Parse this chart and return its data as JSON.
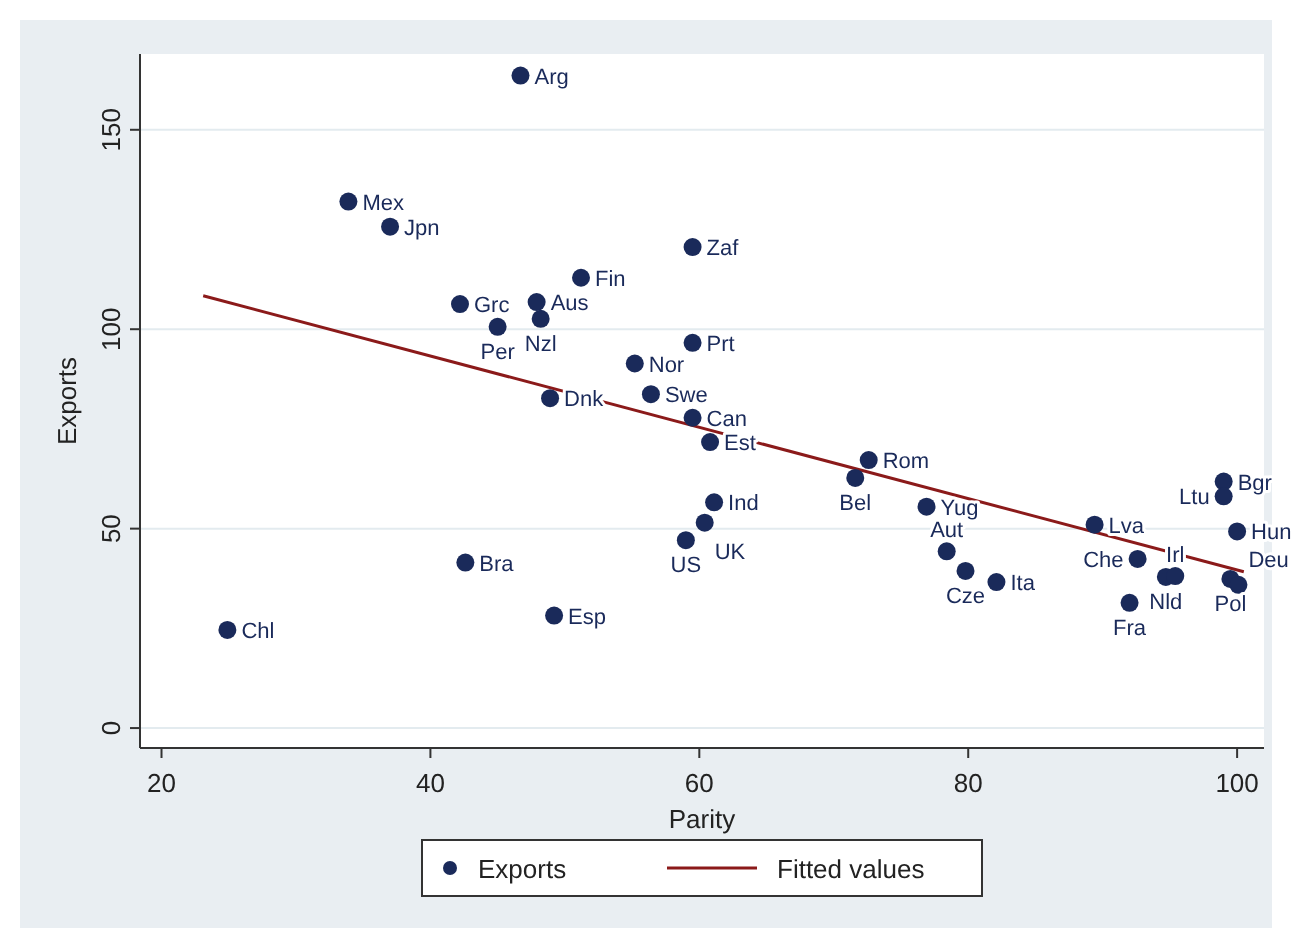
{
  "chart_data": {
    "type": "scatter",
    "xlabel": "Parity",
    "ylabel": "Exports",
    "xlim": [
      18.4,
      102
    ],
    "ylim": [
      -5,
      169
    ],
    "xticks": [
      20,
      40,
      60,
      80,
      100
    ],
    "yticks": [
      0,
      50,
      100,
      150
    ],
    "grid": "y",
    "legend": "bottom",
    "series": [
      {
        "name": "Exports",
        "marker": "circle",
        "color": "#1a2a5a",
        "x": [
          46.7,
          33.9,
          37.0,
          51.2,
          42.2,
          47.9,
          48.2,
          45.0,
          48.9,
          55.2,
          59.5,
          59.5,
          56.4,
          59.5,
          60.8,
          72.6,
          71.6,
          61.1,
          60.4,
          59.0,
          76.9,
          78.4,
          79.8,
          82.1,
          89.4,
          92.6,
          94.7,
          95.4,
          99.5,
          100.1,
          92.0,
          99.0,
          99.0,
          100.0,
          24.9,
          42.6,
          49.2
        ],
        "values": [
          163.6,
          132,
          125.7,
          112.9,
          106.3,
          106.8,
          102.6,
          100.6,
          82.7,
          91.4,
          120.6,
          96.6,
          83.7,
          77.8,
          71.7,
          67.2,
          62.7,
          56.6,
          51.5,
          47.1,
          55.5,
          44.3,
          39.4,
          36.6,
          51.0,
          42.4,
          37.9,
          38.1,
          37.4,
          35.9,
          31.4,
          61.8,
          58.1,
          49.3,
          24.6,
          41.5,
          28.2
        ],
        "value_labels": [
          "Arg",
          "Mex",
          "Jpn",
          "Fin",
          "Grc",
          "Aus",
          "Nzl",
          "Per",
          "Dnk",
          "Nor",
          "Zaf",
          "Prt",
          "Swe",
          "Can",
          "Est",
          "Rom",
          "Bel",
          "Ind",
          "UK",
          "US",
          "Yug",
          "Aut",
          "Cze",
          "Ita",
          "Lva",
          "Che",
          "Nld",
          "Irl",
          "Pol",
          "Deu",
          "Fra",
          "Bgr",
          "Ltu",
          "Hun",
          "Chl",
          "Bra",
          "Esp"
        ]
      },
      {
        "name": "Fitted values",
        "type": "line",
        "color": "#8b1a1a",
        "x": [
          23.1,
          100.5
        ],
        "values": [
          108.4,
          39.2
        ]
      }
    ]
  }
}
